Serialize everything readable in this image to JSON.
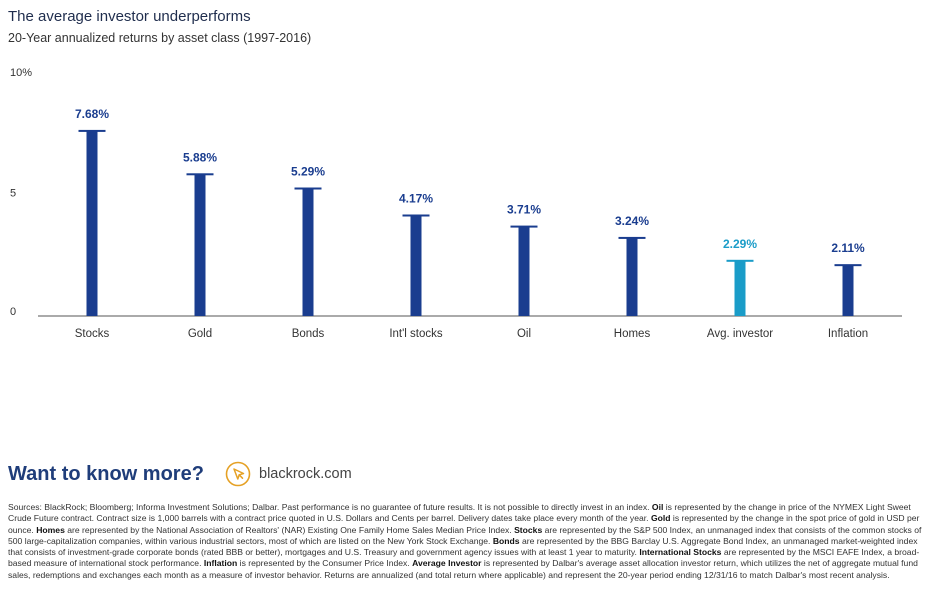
{
  "header": {
    "title": "The average investor underperforms",
    "subtitle": "20-Year annualized returns by asset class (1997-2016)"
  },
  "chart_data": {
    "type": "bar",
    "title": "The average investor underperforms",
    "subtitle": "20-Year annualized returns by asset class (1997-2016)",
    "categories": [
      "Stocks",
      "Gold",
      "Bonds",
      "Int'l stocks",
      "Oil",
      "Homes",
      "Avg. investor",
      "Inflation"
    ],
    "values": [
      7.68,
      5.88,
      5.29,
      4.17,
      3.71,
      3.24,
      2.29,
      2.11
    ],
    "value_labels": [
      "7.68%",
      "5.88%",
      "5.29%",
      "4.17%",
      "3.71%",
      "3.24%",
      "2.29%",
      "2.11%"
    ],
    "highlight_index": 6,
    "yticks": [
      {
        "value": 0,
        "label": "0"
      },
      {
        "value": 5,
        "label": "5"
      },
      {
        "value": 10,
        "label": "10%"
      }
    ],
    "ylim": [
      0,
      10
    ],
    "xlabel": "",
    "ylabel": "",
    "grid": false,
    "legend": "none",
    "colors": {
      "bar": "#1a3d8f",
      "highlight": "#1a9cc8",
      "axis": "#555555",
      "label": "#1a3d8f",
      "highlight_label": "#1a9cc8"
    }
  },
  "cta": {
    "heading": "Want to know more?",
    "icon": "cursor-click-icon",
    "icon_color": "#e5a125",
    "link": "blackrock.com"
  },
  "footnote": {
    "segments": [
      {
        "t": "Sources: BlackRock; Bloomberg; Informa Investment Solutions; Dalbar. Past performance is no guarantee of future results. It is not possible to directly invest in an index. "
      },
      {
        "t": "Oil",
        "b": true
      },
      {
        "t": " is represented by the change in price of the NYMEX Light Sweet Crude Future contract. Contract size is 1,000 barrels with a contract price quoted in U.S. Dollars and Cents per barrel. Delivery dates take place every month of the year. "
      },
      {
        "t": "Gold",
        "b": true
      },
      {
        "t": " is represented by the change in the spot price of gold in USD per ounce. "
      },
      {
        "t": "Homes",
        "b": true
      },
      {
        "t": " are represented by the National Association of Realtors' (NAR) Existing One Family Home Sales Median Price Index. "
      },
      {
        "t": "Stocks",
        "b": true
      },
      {
        "t": " are represented by the S&P 500 Index, an unmanaged index that consists of the common stocks of 500 large-capitalization companies, within various industrial sectors, most of which are listed on the New York Stock Exchange. "
      },
      {
        "t": "Bonds",
        "b": true
      },
      {
        "t": " are represented by the BBG Barclay U.S. Aggregate Bond Index, an unmanaged market-weighted index that consists of investment-grade corporate bonds (rated BBB or better), mortgages and U.S. Treasury and government agency issues with at least 1 year to maturity. "
      },
      {
        "t": "International Stocks",
        "b": true
      },
      {
        "t": " are represented by the MSCI EAFE Index, a broad-based measure of international stock performance. "
      },
      {
        "t": "Inflation",
        "b": true
      },
      {
        "t": " is represented by the Consumer Price Index. "
      },
      {
        "t": "Average Investor",
        "b": true
      },
      {
        "t": " is represented by Dalbar's average asset allocation investor return, which utilizes the net of aggregate mutual fund sales, redemptions and exchanges each month as a measure of investor behavior. Returns are annualized (and total return where applicable) and represent the 20-year period ending 12/31/16 to match Dalbar's most recent analysis."
      }
    ]
  }
}
